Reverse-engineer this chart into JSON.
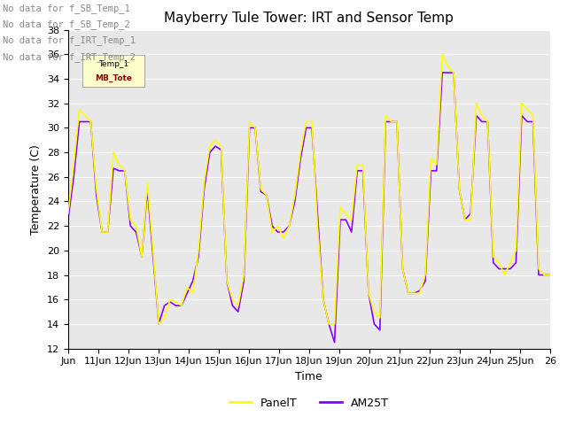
{
  "title": "Mayberry Tule Tower: IRT and Sensor Temp",
  "xlabel": "Time",
  "ylabel": "Temperature (C)",
  "ylim": [
    12,
    38
  ],
  "yticks": [
    12,
    14,
    16,
    18,
    20,
    22,
    24,
    26,
    28,
    30,
    32,
    34,
    36,
    38
  ],
  "xtick_labels": [
    "Jun",
    "11Jun",
    "12Jun",
    "13Jun",
    "14Jun",
    "15Jun",
    "16Jun",
    "17Jun",
    "18Jun",
    "19Jun",
    "20Jun",
    "21Jun",
    "22Jun",
    "23Jun",
    "24Jun",
    "25Jun",
    "26"
  ],
  "panel_color": "#ffff00",
  "am25t_color": "#8800ff",
  "bg_color": "#e8e8e8",
  "no_data_lines": [
    "No data for f_SB_Temp_1",
    "No data for f_SB_Temp_2",
    "No data for f_IRT_Temp_1",
    "No data for f_IRT_Temp_2"
  ],
  "legend_entries": [
    "PanelT",
    "AM25T"
  ],
  "panel_t": [
    23.0,
    27.0,
    31.5,
    31.0,
    30.5,
    25.0,
    21.5,
    21.5,
    28.0,
    27.0,
    26.5,
    22.5,
    22.0,
    19.5,
    25.5,
    20.0,
    14.0,
    14.5,
    16.0,
    15.8,
    15.5,
    17.0,
    16.5,
    20.0,
    25.5,
    28.5,
    29.0,
    28.5,
    17.5,
    16.0,
    15.5,
    18.0,
    30.5,
    30.0,
    25.0,
    24.5,
    21.5,
    22.0,
    21.0,
    22.0,
    24.5,
    28.0,
    30.5,
    30.5,
    22.0,
    16.0,
    14.0,
    14.0,
    23.5,
    23.0,
    22.5,
    27.0,
    27.0,
    16.5,
    15.0,
    14.5,
    31.0,
    30.5,
    30.5,
    18.5,
    16.5,
    16.5,
    16.5,
    18.0,
    27.5,
    27.0,
    36.0,
    35.0,
    34.5,
    25.0,
    22.5,
    22.5,
    32.0,
    31.0,
    30.5,
    19.5,
    19.0,
    18.0,
    19.0,
    20.0,
    32.0,
    31.5,
    31.0,
    18.5,
    18.0,
    18.0
  ],
  "am25t": [
    22.5,
    26.0,
    30.5,
    30.5,
    30.5,
    24.5,
    21.5,
    21.5,
    26.7,
    26.5,
    26.5,
    22.0,
    21.5,
    19.5,
    25.0,
    19.5,
    14.0,
    15.5,
    15.8,
    15.5,
    15.5,
    16.5,
    17.5,
    19.5,
    25.0,
    28.0,
    28.5,
    28.2,
    17.5,
    15.5,
    15.0,
    17.5,
    30.0,
    30.0,
    24.8,
    24.5,
    22.0,
    21.5,
    21.5,
    22.0,
    24.0,
    27.5,
    30.0,
    30.0,
    23.0,
    16.0,
    14.0,
    12.5,
    22.5,
    22.5,
    21.5,
    26.5,
    26.5,
    16.5,
    14.0,
    13.5,
    30.5,
    30.5,
    30.5,
    18.5,
    16.5,
    16.5,
    16.7,
    17.5,
    26.5,
    26.5,
    34.5,
    34.5,
    34.5,
    25.0,
    22.5,
    23.0,
    31.0,
    30.5,
    30.5,
    19.0,
    18.5,
    18.5,
    18.5,
    19.0,
    31.0,
    30.5,
    30.5,
    18.0,
    18.0,
    18.0
  ]
}
